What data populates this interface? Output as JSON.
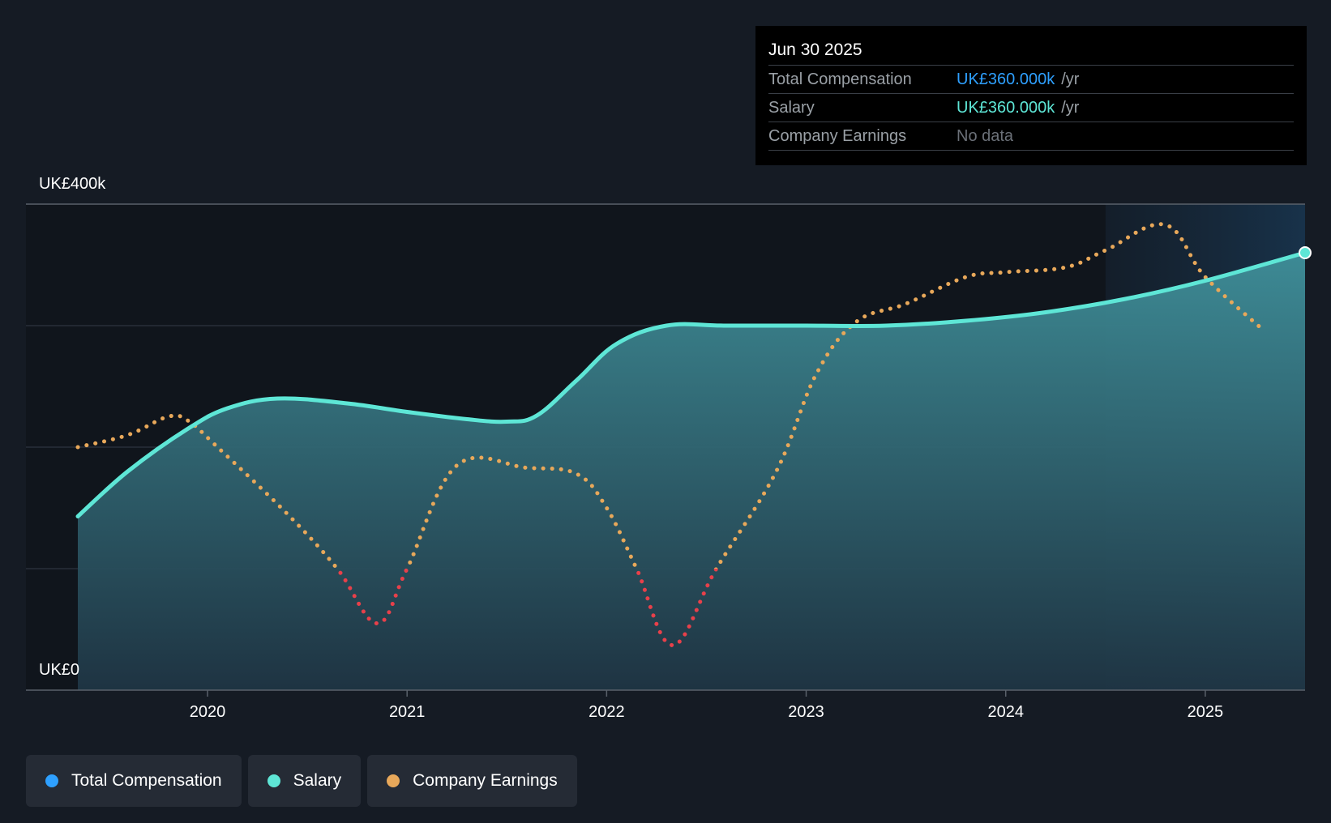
{
  "chart_data": {
    "type": "line",
    "title": "",
    "xlabel": "",
    "ylabel": "",
    "x_range": [
      2019.35,
      2025.5
    ],
    "ylim": [
      0,
      400
    ],
    "y_tick_labels": [
      "UK£0",
      "UK£400k"
    ],
    "x_ticks": [
      {
        "value": 2020,
        "label": "2020"
      },
      {
        "value": 2021,
        "label": "2021"
      },
      {
        "value": 2022,
        "label": "2022"
      },
      {
        "value": 2023,
        "label": "2023"
      },
      {
        "value": 2024,
        "label": "2024"
      },
      {
        "value": 2025,
        "label": "2025"
      }
    ],
    "gridlines": [
      100,
      200,
      300
    ],
    "forecast_start": 2024.5,
    "series": [
      {
        "name": "Salary",
        "color": "#5ee6d6",
        "style": "solid-area",
        "points": [
          [
            2019.35,
            143
          ],
          [
            2019.6,
            180
          ],
          [
            2019.9,
            215
          ],
          [
            2020.1,
            232
          ],
          [
            2020.35,
            240
          ],
          [
            2020.7,
            236
          ],
          [
            2021.0,
            229
          ],
          [
            2021.3,
            223
          ],
          [
            2021.5,
            221
          ],
          [
            2021.65,
            226
          ],
          [
            2021.85,
            255
          ],
          [
            2022.05,
            285
          ],
          [
            2022.3,
            300
          ],
          [
            2022.6,
            300
          ],
          [
            2023.0,
            300
          ],
          [
            2023.4,
            300
          ],
          [
            2023.8,
            304
          ],
          [
            2024.2,
            311
          ],
          [
            2024.6,
            322
          ],
          [
            2025.0,
            337
          ],
          [
            2025.5,
            360
          ]
        ]
      },
      {
        "name": "Company Earnings",
        "color": "#e8a85a",
        "negative_color": "#e8404a",
        "negative_threshold": 100,
        "style": "dotted",
        "points": [
          [
            2019.35,
            200
          ],
          [
            2019.6,
            210
          ],
          [
            2019.8,
            225
          ],
          [
            2019.9,
            222
          ],
          [
            2020.05,
            200
          ],
          [
            2020.4,
            145
          ],
          [
            2020.65,
            100
          ],
          [
            2020.85,
            55
          ],
          [
            2021.0,
            100
          ],
          [
            2021.25,
            185
          ],
          [
            2021.6,
            183
          ],
          [
            2021.85,
            178
          ],
          [
            2022.0,
            150
          ],
          [
            2022.15,
            100
          ],
          [
            2022.33,
            37
          ],
          [
            2022.55,
            100
          ],
          [
            2022.85,
            180
          ],
          [
            2023.05,
            260
          ],
          [
            2023.25,
            303
          ],
          [
            2023.5,
            318
          ],
          [
            2023.8,
            340
          ],
          [
            2024.0,
            344
          ],
          [
            2024.3,
            348
          ],
          [
            2024.5,
            362
          ],
          [
            2024.8,
            383
          ],
          [
            2025.0,
            340
          ],
          [
            2025.3,
            295
          ]
        ]
      }
    ],
    "end_marker": {
      "series": "Salary",
      "x": 2025.5,
      "y": 360
    }
  },
  "y_labels": {
    "top": "UK£400k",
    "bottom": "UK£0"
  },
  "tooltip": {
    "date": "Jun 30 2025",
    "rows": [
      {
        "label": "Total Compensation",
        "value": "UK£360.000k",
        "unit": "/yr",
        "color": "#2ea0ff"
      },
      {
        "label": "Salary",
        "value": "UK£360.000k",
        "unit": "/yr",
        "color": "#5ee6d6"
      },
      {
        "label": "Company Earnings",
        "value": "No data",
        "unit": "",
        "color": "#6b7078"
      }
    ]
  },
  "legend": [
    {
      "label": "Total Compensation",
      "color": "#2ea0ff"
    },
    {
      "label": "Salary",
      "color": "#5ee6d6"
    },
    {
      "label": "Company Earnings",
      "color": "#e8a85a"
    }
  ]
}
